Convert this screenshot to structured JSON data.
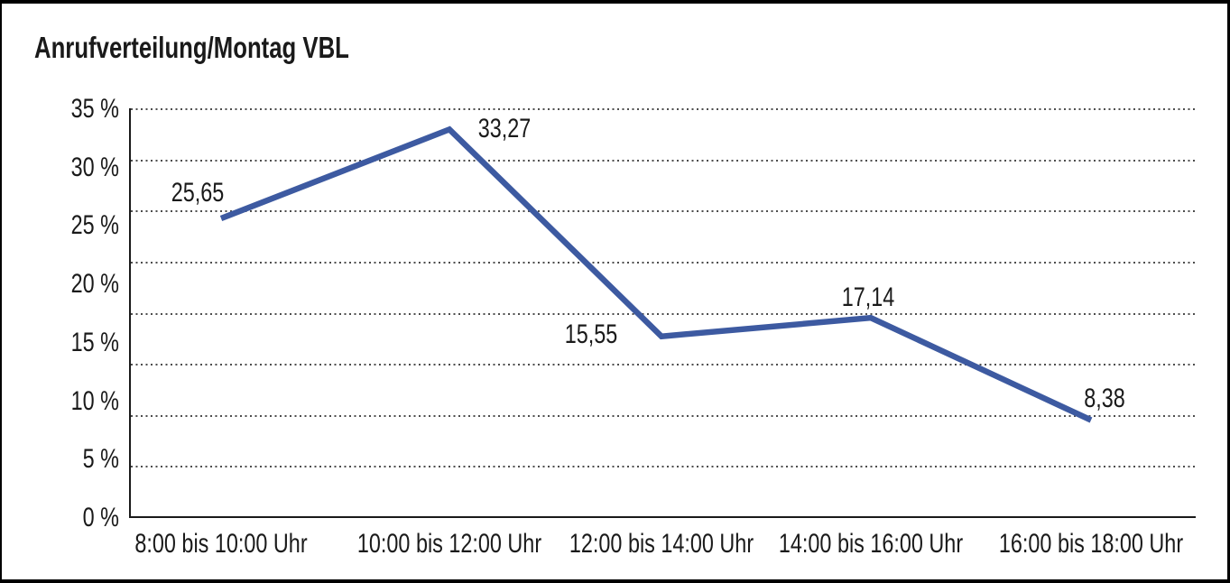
{
  "window": {
    "background": "#ffffff",
    "frame_border_color": "#000000"
  },
  "chart_data": {
    "type": "line",
    "title": "Anrufverteilung/Montag VBL",
    "categories": [
      "8:00 bis 10:00 Uhr",
      "10:00 bis 12:00 Uhr",
      "12:00 bis 14:00 Uhr",
      "14:00 bis 16:00 Uhr",
      "16:00 bis 18:00 Uhr"
    ],
    "values": [
      25.65,
      33.27,
      15.55,
      17.14,
      8.38
    ],
    "point_labels": [
      "25,65",
      "33,27",
      "15,55",
      "17,14",
      "8,38"
    ],
    "y_ticks": [
      "35 %",
      "30 %",
      "25 %",
      "20 %",
      "15 %",
      "10 %",
      "5 %",
      "0 %"
    ],
    "ylim": [
      0,
      35
    ],
    "xlabel": "",
    "ylabel": "",
    "legend": "none",
    "grid": "horizontal-dotted",
    "gridline_count_dotted": 8,
    "line_color": "#3D5AA1",
    "grid_color": "#4d4d4d",
    "axis_color": "#1a1a1a",
    "text_color": "#1a1a1a"
  }
}
